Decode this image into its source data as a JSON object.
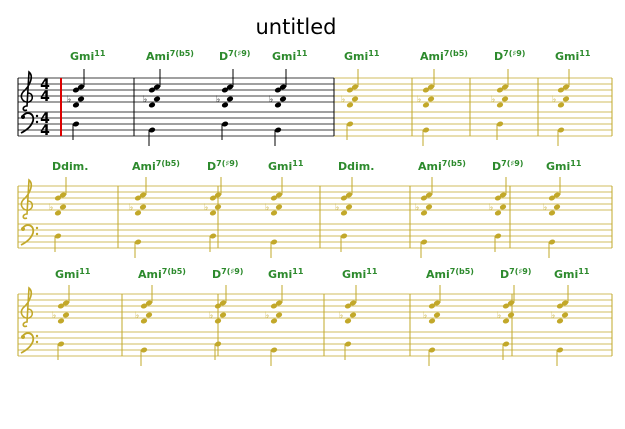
{
  "title": "untitled",
  "time_signature": {
    "top": "4",
    "bottom": "4"
  },
  "systems": [
    {
      "chords": [
        {
          "root": "Gmi",
          "ext": "11"
        },
        {
          "root": "Ami",
          "ext": "7(b5)"
        },
        {
          "root": "D",
          "ext": "7(♯9)"
        },
        {
          "root": "Gmi",
          "ext": "11"
        },
        {
          "root": "Gmi",
          "ext": "11"
        },
        {
          "root": "Ami",
          "ext": "7(b5)"
        },
        {
          "root": "D",
          "ext": "7(♯9)"
        },
        {
          "root": "Gmi",
          "ext": "11"
        }
      ]
    },
    {
      "chords": [
        {
          "root": "Ddim.",
          "ext": ""
        },
        {
          "root": "Ami",
          "ext": "7(b5)"
        },
        {
          "root": "D",
          "ext": "7(♯9)"
        },
        {
          "root": "Gmi",
          "ext": "11"
        },
        {
          "root": "Ddim.",
          "ext": ""
        },
        {
          "root": "Ami",
          "ext": "7(b5)"
        },
        {
          "root": "D",
          "ext": "7(♯9)"
        },
        {
          "root": "Gmi",
          "ext": "11"
        }
      ]
    },
    {
      "chords": [
        {
          "root": "Gmi",
          "ext": "11"
        },
        {
          "root": "Ami",
          "ext": "7(b5)"
        },
        {
          "root": "D",
          "ext": "7(♯9)"
        },
        {
          "root": "Gmi",
          "ext": "11"
        },
        {
          "root": "Gmi",
          "ext": "11"
        },
        {
          "root": "Ami",
          "ext": "7(b5)"
        },
        {
          "root": "D",
          "ext": "7(♯9)"
        },
        {
          "root": "Gmi",
          "ext": "11"
        }
      ]
    }
  ]
}
